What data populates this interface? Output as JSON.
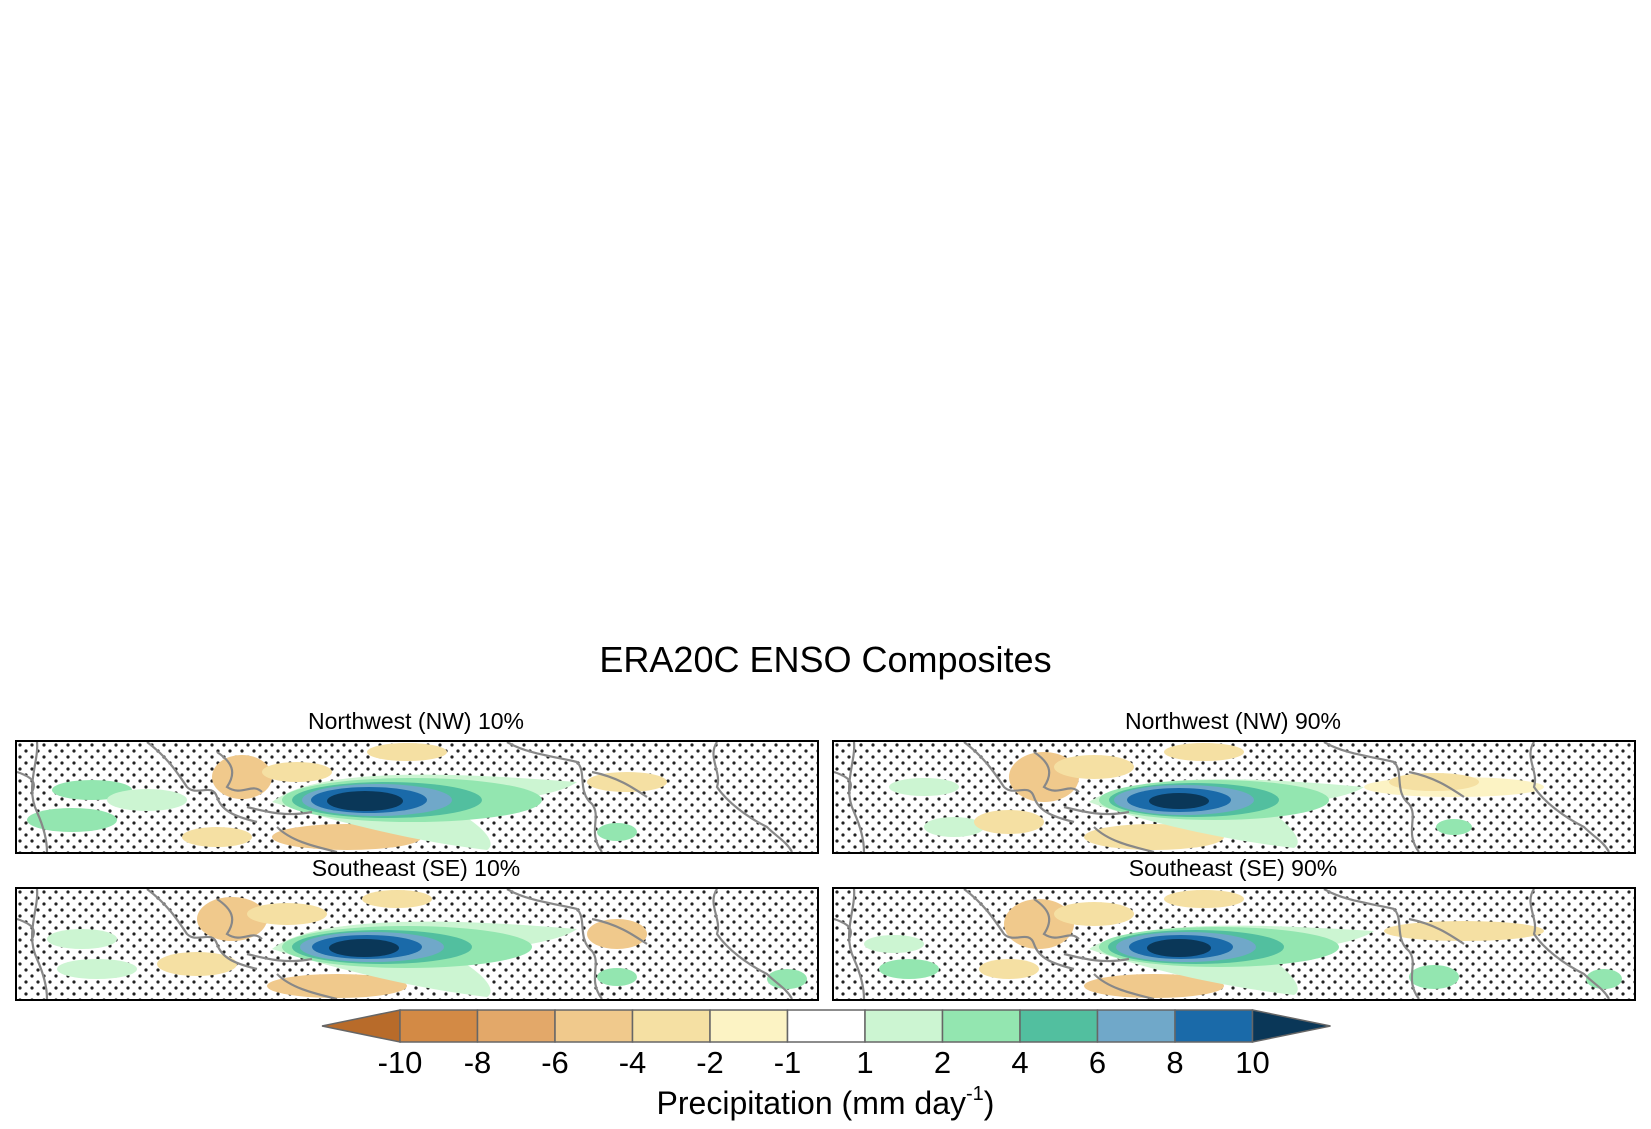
{
  "figure": {
    "title": "ERA20C ENSO Composites"
  },
  "panels": [
    {
      "title": "Northwest (NW) 10%"
    },
    {
      "title": "Northwest (NW) 90%"
    },
    {
      "title": "Southeast (SE) 10%"
    },
    {
      "title": "Southeast (SE) 90%"
    }
  ],
  "colorbar": {
    "label_main": "Precipitation (mm day",
    "label_sup": "-1",
    "label_close": ")",
    "ticks": [
      "-10",
      "-8",
      "-6",
      "-4",
      "-2",
      "-1",
      "1",
      "2",
      "4",
      "6",
      "8",
      "10"
    ],
    "colors": [
      "#b86b2a",
      "#d38a45",
      "#e3a869",
      "#f0c98c",
      "#f5e0a3",
      "#fcf3c4",
      "#ffffff",
      "#ccf5d2",
      "#93e6b0",
      "#52bf9f",
      "#70a8c9",
      "#1a6aa9",
      "#0a3758"
    ]
  },
  "map_style": {
    "coast_color": "#888888",
    "stipple_color": "#222222"
  }
}
